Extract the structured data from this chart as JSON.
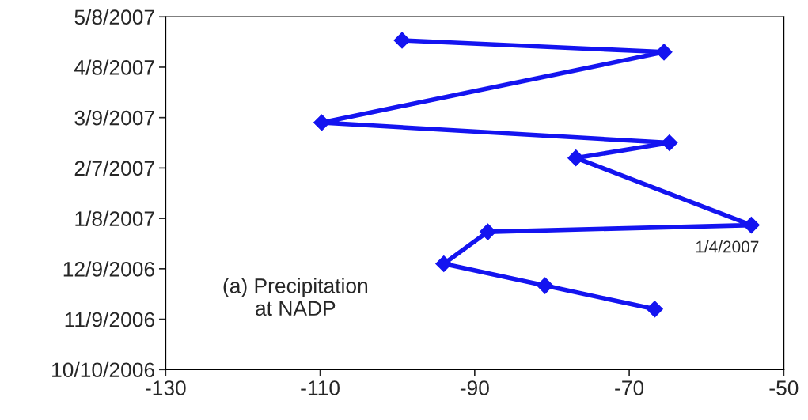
{
  "chart_data": {
    "type": "line",
    "orientation": "horizontal",
    "x": [
      "2006-11-15",
      "2006-11-29",
      "2006-12-12",
      "2006-12-31",
      "2007-01-04",
      "2007-02-13",
      "2007-02-22",
      "2007-03-06",
      "2007-04-17",
      "2007-04-24"
    ],
    "series": [
      {
        "color": "#1414f0",
        "values": [
          -66.7,
          -80.9,
          -94.0,
          -88.3,
          -54.2,
          -76.9,
          -64.8,
          -109.8,
          -65.5,
          -99.4
        ]
      }
    ],
    "xlim": [
      -130,
      -50
    ],
    "xticks": [
      -130,
      -110,
      -90,
      -70,
      -50
    ],
    "ylim": [
      "2006-10-10",
      "2007-05-08"
    ],
    "yticks": [
      {
        "value": "2006-10-10",
        "label": "10/10/2006"
      },
      {
        "value": "2006-11-09",
        "label": "11/9/2006"
      },
      {
        "value": "2006-12-09",
        "label": "12/9/2006"
      },
      {
        "value": "2007-01-08",
        "label": "1/8/2007"
      },
      {
        "value": "2007-02-07",
        "label": "2/7/2007"
      },
      {
        "value": "2007-03-09",
        "label": "3/9/2007"
      },
      {
        "value": "2007-04-08",
        "label": "4/8/2007"
      },
      {
        "value": "2007-05-08",
        "label": "5/8/2007"
      }
    ],
    "marker": "diamond",
    "line_style": "solid",
    "annotations": [
      "(a) Precipitation\nat NADP",
      {
        "text": "1/4/2007",
        "x": -54.2,
        "y": "2007-01-04"
      }
    ]
  }
}
